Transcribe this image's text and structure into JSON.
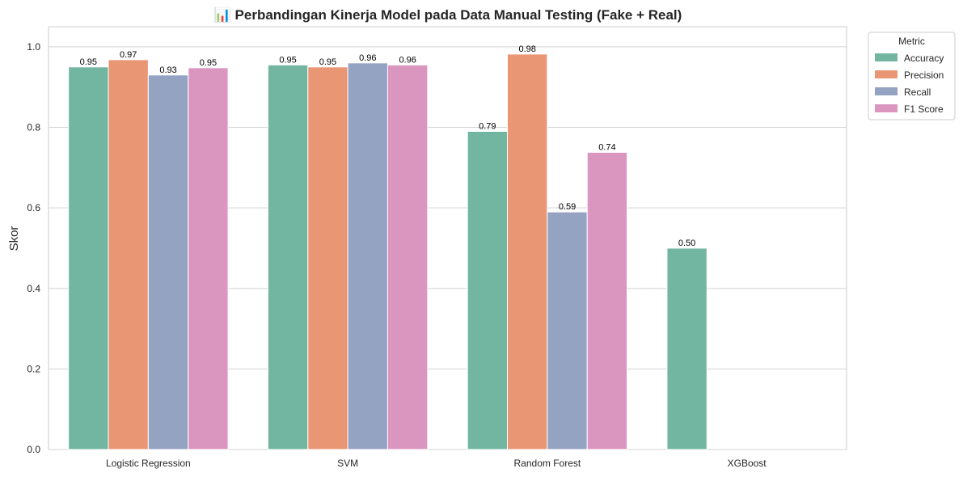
{
  "chart_data": {
    "type": "bar",
    "title": "📊 Perbandingan Kinerja Model pada Data Manual Testing (Fake + Real)",
    "xlabel": "",
    "ylabel": "Skor",
    "ylim": [
      0,
      1.05
    ],
    "yticks": [
      "0.0",
      "0.2",
      "0.4",
      "0.6",
      "0.8",
      "1.0"
    ],
    "categories": [
      "Logistic Regression",
      "SVM",
      "Random Forest",
      "XGBoost"
    ],
    "grid": true,
    "legend": {
      "title": "Metric",
      "placement": "outside-top-right"
    },
    "series": [
      {
        "name": "Accuracy",
        "color": "#72b6a1",
        "values": [
          0.95,
          0.955,
          0.79,
          0.5
        ],
        "labels": [
          "0.95",
          "0.95",
          "0.79",
          "0.50"
        ]
      },
      {
        "name": "Precision",
        "color": "#e99675",
        "values": [
          0.968,
          0.95,
          0.982,
          null
        ],
        "labels": [
          "0.97",
          "0.95",
          "0.98",
          ""
        ]
      },
      {
        "name": "Recall",
        "color": "#95a3c3",
        "values": [
          0.93,
          0.96,
          0.59,
          null
        ],
        "labels": [
          "0.93",
          "0.96",
          "0.59",
          ""
        ]
      },
      {
        "name": "F1 Score",
        "color": "#db96c0",
        "values": [
          0.948,
          0.955,
          0.738,
          null
        ],
        "labels": [
          "0.95",
          "0.96",
          "0.74",
          ""
        ]
      }
    ]
  }
}
